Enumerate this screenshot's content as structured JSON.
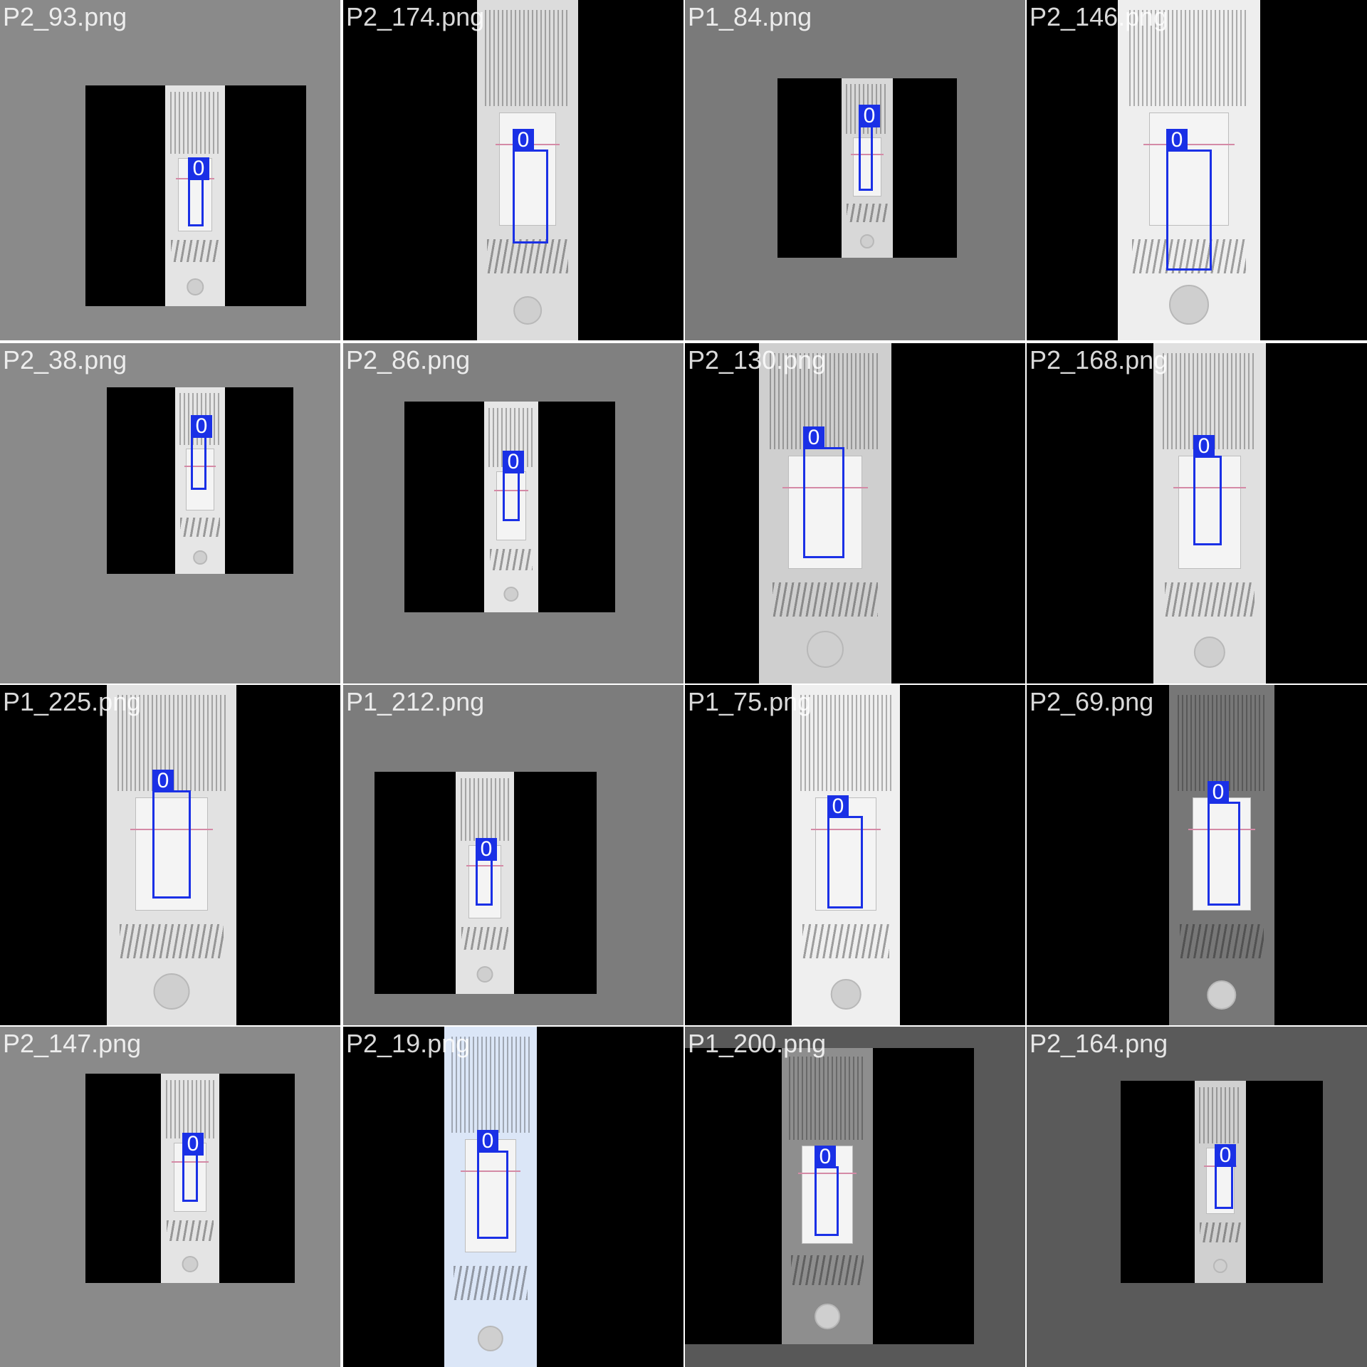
{
  "tiles": [
    {
      "label": "P2_93.png",
      "box_label": "0",
      "col": 0,
      "row": 0
    },
    {
      "label": "P2_174.png",
      "box_label": "0",
      "col": 1,
      "row": 0
    },
    {
      "label": "P1_84.png",
      "box_label": "0",
      "col": 2,
      "row": 0
    },
    {
      "label": "P2_146.png",
      "box_label": "0",
      "col": 3,
      "row": 0
    },
    {
      "label": "P2_38.png",
      "box_label": "0",
      "col": 0,
      "row": 1
    },
    {
      "label": "P2_86.png",
      "box_label": "0",
      "col": 1,
      "row": 1
    },
    {
      "label": "P2_130.png",
      "box_label": "0",
      "col": 2,
      "row": 1
    },
    {
      "label": "P2_168.png",
      "box_label": "0",
      "col": 3,
      "row": 1
    },
    {
      "label": "P1_225.png",
      "box_label": "0",
      "col": 0,
      "row": 2
    },
    {
      "label": "P1_212.png",
      "box_label": "0",
      "col": 1,
      "row": 2
    },
    {
      "label": "P1_75.png",
      "box_label": "0",
      "col": 2,
      "row": 2
    },
    {
      "label": "P2_69.png",
      "box_label": "0",
      "col": 3,
      "row": 2
    },
    {
      "label": "P2_147.png",
      "box_label": "0",
      "col": 0,
      "row": 3
    },
    {
      "label": "P2_19.png",
      "box_label": "0",
      "col": 1,
      "row": 3
    },
    {
      "label": "P1_200.png",
      "box_label": "0",
      "col": 2,
      "row": 3
    },
    {
      "label": "P2_164.png",
      "box_label": "0",
      "col": 3,
      "row": 3
    }
  ],
  "colors": {
    "box": "#1a30e6",
    "background_gray": "#8a8a8a"
  }
}
